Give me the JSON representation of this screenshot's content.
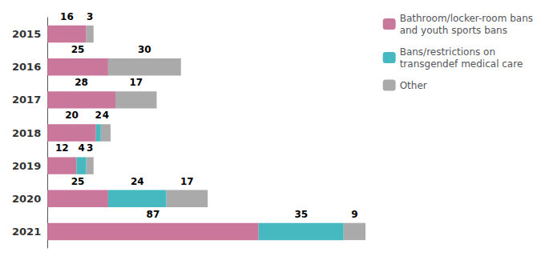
{
  "chart_data": {
    "type": "bar",
    "orientation": "horizontal",
    "stacked": true,
    "categories": [
      "2015",
      "2016",
      "2017",
      "2018",
      "2019",
      "2020",
      "2021"
    ],
    "series": [
      {
        "name": "Bathroom/locker-room bans\nand youth sports bans",
        "color": "#c9779a",
        "values": [
          16,
          25,
          28,
          20,
          12,
          25,
          87
        ]
      },
      {
        "name": "Bans/restrictions on\ntransgendef medical care",
        "color": "#45b8c0",
        "values": [
          0,
          0,
          0,
          2,
          4,
          24,
          35
        ]
      },
      {
        "name": "Other",
        "color": "#aaaaaa",
        "values": [
          3,
          30,
          17,
          4,
          3,
          17,
          9
        ]
      }
    ],
    "xlim": [
      0,
      200
    ],
    "tick_labels": "y",
    "data_labels": true,
    "legend": "upper right",
    "grid": false
  }
}
